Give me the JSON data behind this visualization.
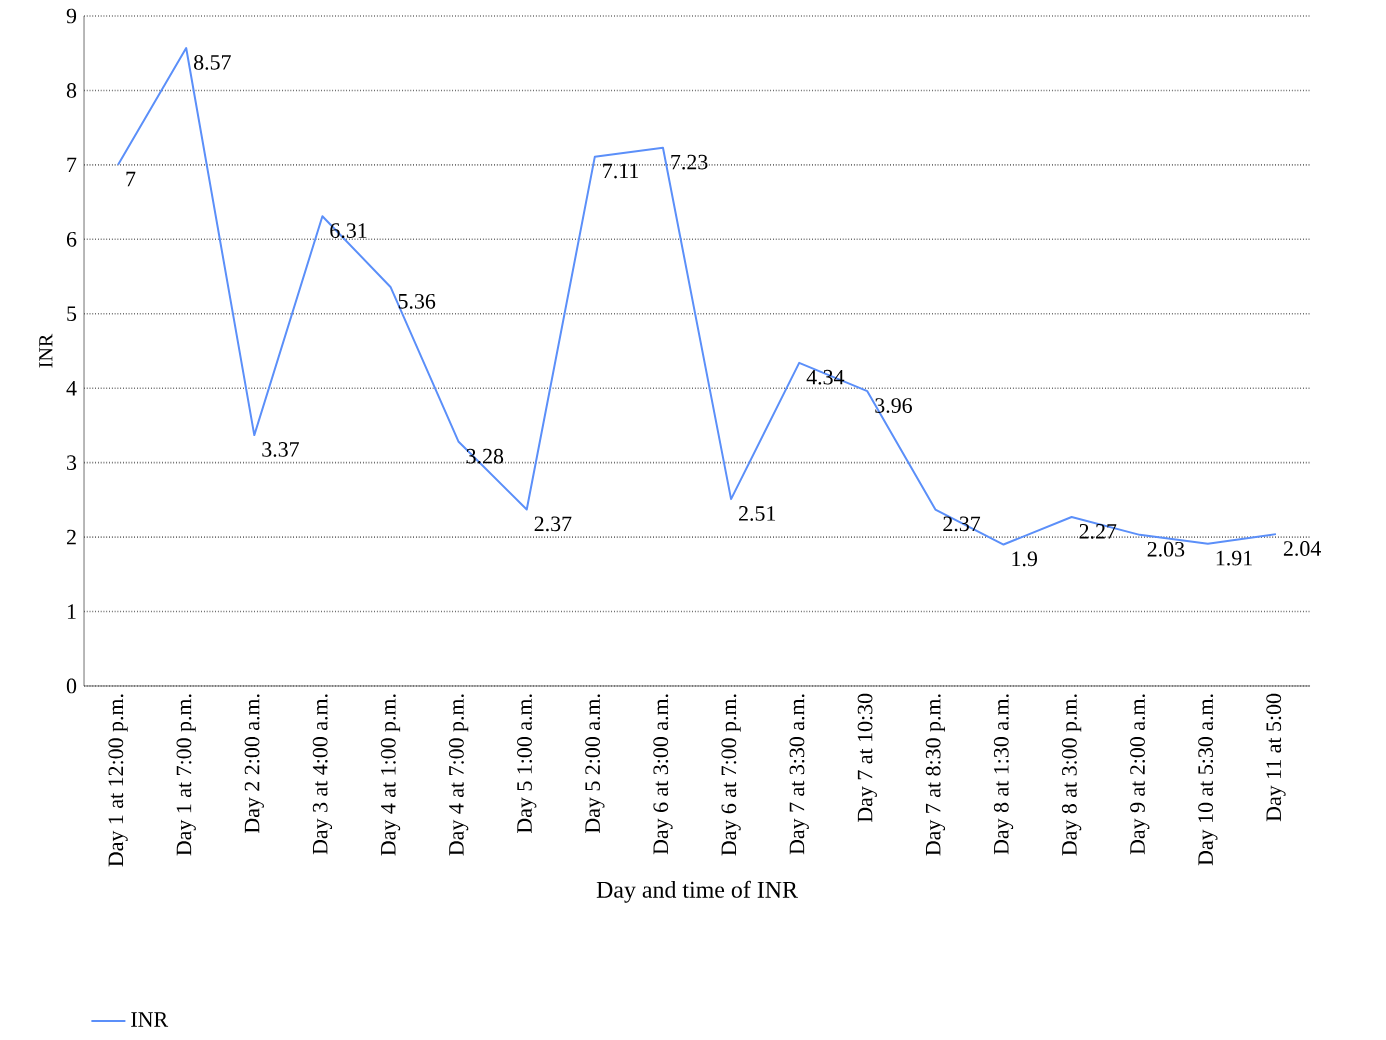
{
  "chart_data": {
    "type": "line",
    "xlabel": "Day and time of INR",
    "ylabel": "INR",
    "categories": [
      "Day 1 at 12:00 p.m.",
      "Day 1 at 7:00 p.m.",
      "Day 2 2:00 a.m.",
      "Day 3 at 4:00 a.m.",
      "Day 4 at 1:00 p.m.",
      "Day 4 at 7:00 p.m.",
      "Day 5 1:00 a.m.",
      "Day 5 2:00 a.m.",
      "Day 6 at 3:00 a.m.",
      "Day 6 at 7:00 p.m.",
      "Day 7 at 3:30 a.m.",
      "Day 7 at 10:30",
      "Day 7 at 8:30 p.m.",
      "Day 8 at 1:30 a.m.",
      "Day 8 at 3:00 p.m.",
      "Day 9 at 2:00 a.m.",
      "Day 10 at 5:30 a.m.",
      "Day 11 at 5:00"
    ],
    "series": [
      {
        "name": "INR",
        "color": "#5b8ff9",
        "values": [
          7,
          8.57,
          3.37,
          6.31,
          5.36,
          3.28,
          2.37,
          7.11,
          7.23,
          2.51,
          4.34,
          3.96,
          2.37,
          1.9,
          2.27,
          2.03,
          1.91,
          2.04
        ]
      }
    ],
    "ylim": [
      0,
      9
    ],
    "yticks": [
      0,
      1,
      2,
      3,
      4,
      5,
      6,
      7,
      8,
      9
    ],
    "grid": "y",
    "legend": "bottom left",
    "marker": "none",
    "line_style": "solid",
    "data_labels": true
  }
}
